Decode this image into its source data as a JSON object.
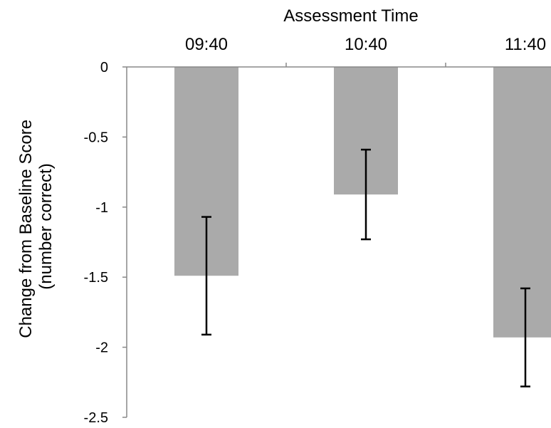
{
  "chart_data": {
    "type": "bar",
    "title": "",
    "xlabel": "Assessment Time",
    "ylabel": "Change from Baseline Score\n(number correct)",
    "ylabel_lines": [
      "Change from Baseline Score",
      "(number correct)"
    ],
    "categories": [
      "09:40",
      "10:40",
      "11:40"
    ],
    "values": [
      -1.49,
      -0.91,
      -1.93
    ],
    "error_bars": [
      {
        "low": -1.91,
        "high": -1.07
      },
      {
        "low": -1.23,
        "high": -0.59
      },
      {
        "low": -2.28,
        "high": -1.58
      }
    ],
    "yticks": [
      0,
      -0.5,
      -1,
      -1.5,
      -2,
      -2.5
    ],
    "ytick_labels": [
      "0",
      "-0.5",
      "-1",
      "-1.5",
      "-2",
      "-2.5"
    ],
    "ylim": [
      -2.5,
      0
    ],
    "x_axis_position": "top",
    "grid": false,
    "bar_color": "#aaaaaa",
    "error_color": "#000000",
    "axis_color": "#888888"
  }
}
